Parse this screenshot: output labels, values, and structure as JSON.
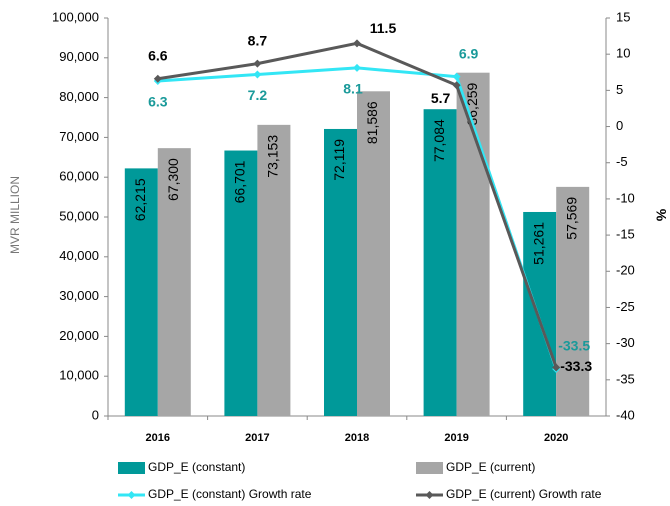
{
  "chart_data": {
    "type": "bar",
    "categories": [
      "2016",
      "2017",
      "2018",
      "2019",
      "2020"
    ],
    "y_axis_label": "MVR MILLION",
    "y2_axis_label": "%",
    "ylim": [
      0,
      100000
    ],
    "yticks": [
      {
        "value": 0,
        "label": "0"
      },
      {
        "value": 10000,
        "label": "10,000"
      },
      {
        "value": 20000,
        "label": "20,000"
      },
      {
        "value": 30000,
        "label": "30,000"
      },
      {
        "value": 40000,
        "label": "40,000"
      },
      {
        "value": 50000,
        "label": "50,000"
      },
      {
        "value": 60000,
        "label": "60,000"
      },
      {
        "value": 70000,
        "label": "70,000"
      },
      {
        "value": 80000,
        "label": "80,000"
      },
      {
        "value": 90000,
        "label": "90,000"
      },
      {
        "value": 100000,
        "label": "100,000"
      }
    ],
    "y2lim": [
      -40,
      15
    ],
    "y2ticks": [
      -40,
      -35,
      -30,
      -25,
      -20,
      -15,
      -10,
      -5,
      0,
      5,
      10,
      15
    ],
    "legend": "bottom",
    "series": [
      {
        "name": "GDP_E (constant)",
        "type": "bar",
        "color": "#009999",
        "values": [
          62215,
          66701,
          72119,
          77084,
          51261
        ],
        "value_labels": [
          "62,215",
          "66,701",
          "72,119",
          "77,084",
          "51,261"
        ]
      },
      {
        "name": "GDP_E (current)",
        "type": "bar",
        "color": "#a6a6a6",
        "values": [
          67300,
          73153,
          81586,
          86259,
          57569
        ],
        "value_labels": [
          "67,300",
          "73,153",
          "81,586",
          "86,259",
          "57,569"
        ]
      },
      {
        "name": "GDP_E (constant) Growth rate",
        "type": "line",
        "axis": "y2",
        "color": "#33e6f5",
        "label_color": "#1a9a9a",
        "values": [
          6.3,
          7.2,
          8.1,
          6.9,
          -33.5
        ]
      },
      {
        "name": "GDP_E (current) Growth rate",
        "type": "line",
        "axis": "y2",
        "color": "#595959",
        "label_color": "#000000",
        "values": [
          6.6,
          8.7,
          11.5,
          5.7,
          -33.3
        ]
      }
    ]
  }
}
